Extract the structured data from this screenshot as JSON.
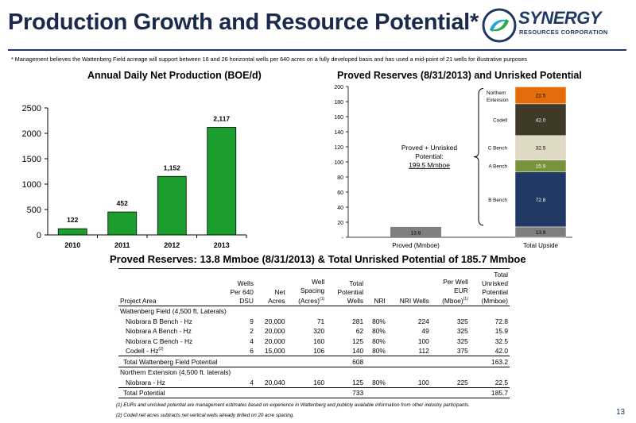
{
  "header": {
    "title": "Production Growth and Resource Potential*",
    "logo_name": "SYNERGY",
    "logo_sub": "RESOURCES CORPORATION",
    "note": "* Management believes the Wattenberg Field acreage will support between 16 and 26 horizontal wells per 640 acres on a fully developed basis and has used a mid-point of 21 wells for illustrative purposes"
  },
  "chart_data": [
    {
      "type": "bar",
      "title": "Annual Daily Net Production (BOE/d)",
      "categories": [
        "2010",
        "2011",
        "2012",
        "2013"
      ],
      "values": [
        122,
        452,
        1152,
        2117
      ],
      "value_labels": [
        "122",
        "452",
        "1,152",
        "2,117"
      ],
      "ylim": [
        0,
        2500
      ],
      "yticks": [
        "0",
        "500",
        "1000",
        "1500",
        "2000",
        "2500"
      ],
      "color": "#1c9e2e",
      "grid": false
    },
    {
      "type": "bar",
      "subtype": "stacked",
      "title": "Proved Reserves (8/31/2013) and Unrisked Potential",
      "categories": [
        "Proved  (Mmboe)",
        "Total Upside"
      ],
      "yticks": [
        "-",
        "20",
        "40",
        "60",
        "80",
        "100",
        "120",
        "140",
        "160",
        "180",
        "200"
      ],
      "ylim": [
        0,
        200
      ],
      "proved": {
        "value": 13.8,
        "label": "13.8",
        "color": "#7f7f7f"
      },
      "upside_segments": [
        {
          "name": "",
          "value": 13.8,
          "label": "13.8",
          "color": "#7f7f7f"
        },
        {
          "name": "B Bench",
          "value": 72.8,
          "label": "72.8",
          "color": "#1f3864"
        },
        {
          "name": "A Bench",
          "value": 15.9,
          "label": "15.9",
          "color": "#77933c"
        },
        {
          "name": "C Bench",
          "value": 32.5,
          "label": "32.5",
          "color": "#ddd9c3"
        },
        {
          "name": "Codell",
          "value": 42.0,
          "label": "42.0",
          "color": "#3f3a27"
        },
        {
          "name": "Northern Extension",
          "value": 22.5,
          "label": "22.5",
          "color": "#e46c0a"
        }
      ],
      "annotation_line1": "Proved + Unrisked",
      "annotation_line2": "Potential:",
      "annotation_value": "199.5 Mmboe"
    }
  ],
  "table": {
    "section_title": "Proved Reserves: 13.8 Mmboe (8/31/2013) & Total Unrisked Potential of 185.7 Mmboe",
    "headers": {
      "area": "Project Area",
      "wells1": "Wells",
      "wells2": "Per 640",
      "wells3": "DSU",
      "net1": "Net",
      "net2": "Acres",
      "spacing1": "Well",
      "spacing2": "Spacing",
      "spacing3": "(Acres)",
      "spacing_sup": "(1)",
      "tpw1": "Total",
      "tpw2": "Potential",
      "tpw3": "Wells",
      "nri": "NRI",
      "nriw": "NRI Wells",
      "eur1": "Per Well",
      "eur2": "EUR",
      "eur3": "(Mboe)",
      "eur_sup": "(1)",
      "tup1": "Total",
      "tup2": "Unrisked",
      "tup3": "Potential",
      "tup4": "(Mmboe)"
    },
    "group1": "Wattenberg Field (4,500 ft. Laterals)",
    "rows1": [
      {
        "area": "Niobrara B Bench - Hz",
        "sup": "",
        "wells": "9",
        "net": "20,000",
        "spacing": "71",
        "tpw": "281",
        "nri": "80%",
        "nriw": "224",
        "eur": "325",
        "tup": "72.8"
      },
      {
        "area": "Niobrara A Bench - Hz",
        "sup": "",
        "wells": "2",
        "net": "20,000",
        "spacing": "320",
        "tpw": "62",
        "nri": "80%",
        "nriw": "49",
        "eur": "325",
        "tup": "15.9"
      },
      {
        "area": "Niobrara C Bench - Hz",
        "sup": "",
        "wells": "4",
        "net": "20,000",
        "spacing": "160",
        "tpw": "125",
        "nri": "80%",
        "nriw": "100",
        "eur": "325",
        "tup": "32.5"
      },
      {
        "area": "Codell - Hz",
        "sup": "(2)",
        "wells": "6",
        "net": "15,000",
        "spacing": "106",
        "tpw": "140",
        "nri": "80%",
        "nriw": "112",
        "eur": "375",
        "tup": "42.0"
      }
    ],
    "subtotal1": {
      "label": "Total Wattenberg Field Potential",
      "tpw": "608",
      "tup": "163.2"
    },
    "group2": "Northern Extension (4,500 ft. laterals)",
    "rows2": [
      {
        "area": "Niobrara - Hz",
        "wells": "4",
        "net": "20,040",
        "spacing": "160",
        "tpw": "125",
        "nri": "80%",
        "nriw": "100",
        "eur": "225",
        "tup": "22.5"
      }
    ],
    "total": {
      "label": "Total Potential",
      "tpw": "733",
      "tup": "185.7"
    },
    "footnote1": "(1) EURs and unrisked potential are management estimates based on experience in Wattenberg and publicly available information from other industry participants.",
    "footnote2": "(2) Codell net acres subtracts net vertical wells already drilled on 20 acre spacing."
  },
  "page_number": "13"
}
